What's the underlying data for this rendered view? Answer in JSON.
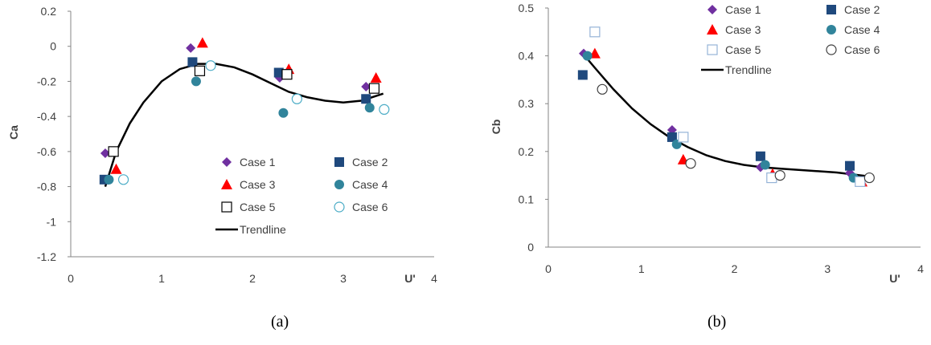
{
  "chart_data": [
    {
      "type": "scatter",
      "caption": "(a)",
      "ylabel": "Ca",
      "xlabel": "U'",
      "xlim": [
        0,
        4
      ],
      "ylim": [
        -1.2,
        0.2
      ],
      "x_ticks": [
        "0",
        "1",
        "2",
        "3",
        "4"
      ],
      "y_ticks": [
        "0.2",
        "0",
        "-0.2",
        "-0.4",
        "-0.6",
        "-0.8",
        "-1",
        "-1.2"
      ],
      "legend_position": "lower-right",
      "series": [
        {
          "name": "Case 1",
          "marker": "diamond",
          "color": "#7030a0",
          "x": [
            0.38,
            1.32,
            2.3,
            3.25
          ],
          "y": [
            -0.61,
            -0.01,
            -0.18,
            -0.23
          ]
        },
        {
          "name": "Case 2",
          "marker": "square",
          "color": "#1f497d",
          "x": [
            0.37,
            1.34,
            2.29,
            3.25
          ],
          "y": [
            -0.76,
            -0.09,
            -0.15,
            -0.3
          ]
        },
        {
          "name": "Case 3",
          "marker": "triangle",
          "color": "#ff0000",
          "x": [
            0.5,
            1.45,
            2.4,
            3.36
          ],
          "y": [
            -0.7,
            0.02,
            -0.13,
            -0.18
          ]
        },
        {
          "name": "Case 4",
          "marker": "circle",
          "color": "#31849b",
          "x": [
            0.42,
            1.38,
            2.34,
            3.29
          ],
          "y": [
            -0.76,
            -0.2,
            -0.38,
            -0.35
          ]
        },
        {
          "name": "Case 5",
          "marker": "open-square",
          "color": "#000000",
          "x": [
            0.47,
            1.42,
            2.38,
            3.34
          ],
          "y": [
            -0.6,
            -0.14,
            -0.16,
            -0.24
          ]
        },
        {
          "name": "Case 6",
          "marker": "open-circle",
          "color": "#4bacc6",
          "x": [
            0.58,
            1.54,
            2.49,
            3.45
          ],
          "y": [
            -0.76,
            -0.11,
            -0.3,
            -0.36
          ]
        },
        {
          "name": "Trendline",
          "marker": "line",
          "color": "#000000",
          "x": [
            0.38,
            0.5,
            0.65,
            0.8,
            1.0,
            1.2,
            1.4,
            1.6,
            1.8,
            2.0,
            2.2,
            2.4,
            2.6,
            2.8,
            3.0,
            3.2,
            3.44
          ],
          "y": [
            -0.8,
            -0.6,
            -0.44,
            -0.32,
            -0.2,
            -0.13,
            -0.1,
            -0.1,
            -0.12,
            -0.16,
            -0.21,
            -0.26,
            -0.29,
            -0.31,
            -0.32,
            -0.31,
            -0.27
          ]
        }
      ]
    },
    {
      "type": "scatter",
      "caption": "(b)",
      "ylabel": "Cb",
      "xlabel": "U'",
      "xlim": [
        0,
        4
      ],
      "ylim": [
        0,
        0.5
      ],
      "x_ticks": [
        "0",
        "1",
        "2",
        "3",
        "4"
      ],
      "y_ticks": [
        "0.5",
        "0.4",
        "0.3",
        "0.2",
        "0.1",
        "0"
      ],
      "legend_position": "top",
      "series": [
        {
          "name": "Case 1",
          "marker": "diamond",
          "color": "#7030a0",
          "x": [
            0.38,
            1.33,
            2.28,
            3.24
          ],
          "y": [
            0.405,
            0.245,
            0.167,
            0.155
          ]
        },
        {
          "name": "Case 2",
          "marker": "square",
          "color": "#1f497d",
          "x": [
            0.37,
            1.33,
            2.28,
            3.24
          ],
          "y": [
            0.36,
            0.23,
            0.19,
            0.17
          ]
        },
        {
          "name": "Case 3",
          "marker": "triangle",
          "color": "#ff0000",
          "x": [
            0.5,
            1.45,
            2.41,
            3.37
          ],
          "y": [
            0.405,
            0.183,
            0.153,
            0.137
          ]
        },
        {
          "name": "Case 4",
          "marker": "circle",
          "color": "#31849b",
          "x": [
            0.42,
            1.38,
            2.33,
            3.28
          ],
          "y": [
            0.4,
            0.215,
            0.172,
            0.145
          ]
        },
        {
          "name": "Case 5",
          "marker": "open-square",
          "color": "#95b3d7",
          "x": [
            0.5,
            1.45,
            2.4,
            3.35
          ],
          "y": [
            0.45,
            0.23,
            0.145,
            0.137
          ]
        },
        {
          "name": "Case 6",
          "marker": "open-circle",
          "color": "#404040",
          "x": [
            0.58,
            1.53,
            2.49,
            3.45
          ],
          "y": [
            0.33,
            0.175,
            0.15,
            0.145
          ]
        },
        {
          "name": "Trendline",
          "marker": "line",
          "color": "#000000",
          "x": [
            0.37,
            0.5,
            0.7,
            0.9,
            1.1,
            1.3,
            1.5,
            1.7,
            1.9,
            2.1,
            2.3,
            2.5,
            2.8,
            3.1,
            3.44
          ],
          "y": [
            0.405,
            0.375,
            0.33,
            0.29,
            0.257,
            0.23,
            0.209,
            0.192,
            0.18,
            0.172,
            0.167,
            0.164,
            0.16,
            0.156,
            0.148
          ]
        }
      ]
    }
  ]
}
